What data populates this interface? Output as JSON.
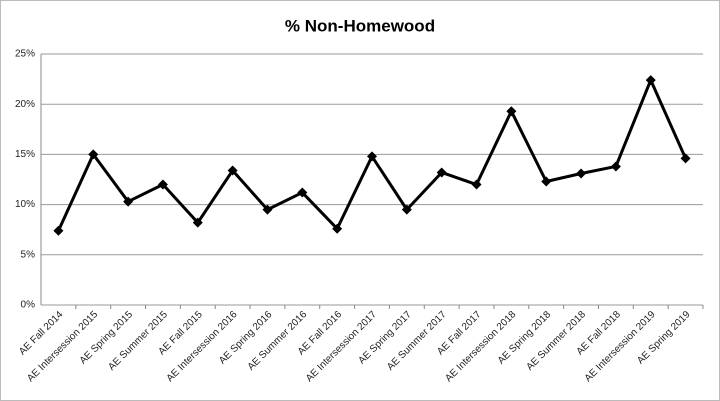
{
  "chart_data": {
    "type": "line",
    "title": "% Non-Homewood",
    "categories": [
      "AE Fall 2014",
      "AE Intersession 2015",
      "AE Spring 2015",
      "AE Summer 2015",
      "AE Fall 2015",
      "AE Intersession 2016",
      "AE Spring 2016",
      "AE Summer 2016",
      "AE Fall 2016",
      "AE Intersession 2017",
      "AE Spring 2017",
      "AE Summer 2017",
      "AE Fall 2017",
      "AE Intersession 2018",
      "AE Spring 2018",
      "AE Summer 2018",
      "AE Fall 2018",
      "AE Intersession 2019",
      "AE Spring 2019"
    ],
    "values": [
      7.4,
      15.0,
      10.3,
      12.0,
      8.2,
      13.4,
      9.5,
      11.2,
      7.6,
      14.8,
      9.5,
      13.2,
      12.0,
      19.3,
      12.3,
      13.1,
      13.8,
      22.4,
      14.6
    ],
    "color": "#000000",
    "ylim": [
      0,
      25
    ],
    "yticks": [
      {
        "value": 0,
        "label": "0%"
      },
      {
        "value": 5,
        "label": "5%"
      },
      {
        "value": 10,
        "label": "10%"
      },
      {
        "value": 15,
        "label": "15%"
      },
      {
        "value": 20,
        "label": "20%"
      },
      {
        "value": 25,
        "label": "25%"
      }
    ],
    "grid": true
  }
}
